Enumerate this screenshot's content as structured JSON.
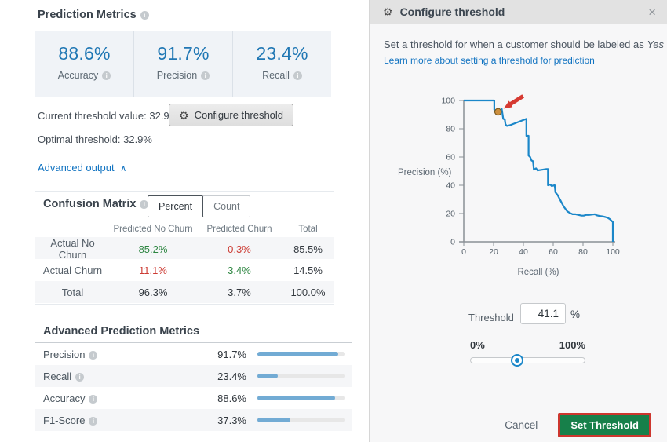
{
  "left_panel": {
    "title": "Prediction Metrics",
    "summary_metrics": [
      {
        "value": "88.6%",
        "label": "Accuracy"
      },
      {
        "value": "91.7%",
        "label": "Precision"
      },
      {
        "value": "23.4%",
        "label": "Recall"
      }
    ],
    "current_threshold_text": "Current threshold value: 32.9%",
    "configure_button_label": "Configure threshold",
    "optimal_threshold_text": "Optimal threshold: 32.9%",
    "advanced_output_label": "Advanced output",
    "confusion_matrix": {
      "title": "Confusion Matrix",
      "toggle_selected": "Percent",
      "toggle_unselected": "Count",
      "col_headers": [
        "Predicted No Churn",
        "Predicted Churn",
        "Total"
      ],
      "rows": [
        {
          "label": "Actual No Churn",
          "cells": [
            {
              "text": "85.2%",
              "color": "green"
            },
            {
              "text": "0.3%",
              "color": "red"
            },
            {
              "text": "85.5%",
              "color": "dark"
            }
          ]
        },
        {
          "label": "Actual Churn",
          "cells": [
            {
              "text": "11.1%",
              "color": "red"
            },
            {
              "text": "3.4%",
              "color": "green"
            },
            {
              "text": "14.5%",
              "color": "dark"
            }
          ]
        },
        {
          "label": "Total",
          "cells": [
            {
              "text": "96.3%",
              "color": "dark"
            },
            {
              "text": "3.7%",
              "color": "dark"
            },
            {
              "text": "100.0%",
              "color": "dark"
            }
          ]
        }
      ]
    },
    "advanced_metrics": {
      "title": "Advanced Prediction Metrics",
      "rows": [
        {
          "label": "Precision",
          "value": "91.7%",
          "pct": 91.7
        },
        {
          "label": "Recall",
          "value": "23.4%",
          "pct": 23.4
        },
        {
          "label": "Accuracy",
          "value": "88.6%",
          "pct": 88.6
        },
        {
          "label": "F1-Score",
          "value": "37.3%",
          "pct": 37.3
        }
      ]
    }
  },
  "dialog": {
    "title": "Configure threshold",
    "intro_text": "Set a threshold for when a customer should be labeled as",
    "intro_emphasis": "Yes",
    "link_text": "Learn more about setting a threshold for prediction",
    "threshold_label": "Threshold",
    "threshold_value": "41.1",
    "percent_sign": "%",
    "slider_min_label": "0%",
    "slider_max_label": "100%",
    "slider_pct": 41,
    "cancel_label": "Cancel",
    "submit_label": "Set Threshold"
  },
  "icons": {
    "gear": "⚙",
    "close": "×",
    "chevron_up": "∧"
  },
  "chart_data": {
    "type": "line",
    "title": "",
    "xlabel": "Recall (%)",
    "ylabel": "Precision (%)",
    "xlim": [
      0,
      100
    ],
    "ylim": [
      0,
      100
    ],
    "xticks": [
      0,
      20,
      40,
      60,
      80,
      100
    ],
    "yticks": [
      0,
      20,
      40,
      60,
      80,
      100
    ],
    "grid": false,
    "legend": "none",
    "line_color": "#1b87c9",
    "marker_color": "#cc8f3f",
    "annotation_color": "#d63a32",
    "series": [
      {
        "name": "precision-recall-curve",
        "points": [
          [
            0,
            100
          ],
          [
            20.5,
            100
          ],
          [
            20.5,
            93.5
          ],
          [
            21.5,
            92.5
          ],
          [
            23,
            92
          ],
          [
            25,
            92.5
          ],
          [
            25.5,
            94
          ],
          [
            26.5,
            87
          ],
          [
            27.5,
            86.5
          ],
          [
            28,
            83
          ],
          [
            29,
            82
          ],
          [
            31,
            82.5
          ],
          [
            42,
            87
          ],
          [
            42,
            75
          ],
          [
            43.5,
            75
          ],
          [
            43.5,
            61
          ],
          [
            44.5,
            60
          ],
          [
            45.5,
            57.5
          ],
          [
            46.5,
            57
          ],
          [
            47,
            51
          ],
          [
            48.5,
            52
          ],
          [
            49.5,
            50.5
          ],
          [
            55.5,
            51.5
          ],
          [
            56.5,
            51.5
          ],
          [
            56.5,
            40
          ],
          [
            58,
            40.5
          ],
          [
            59,
            39.5
          ],
          [
            61,
            40
          ],
          [
            61.5,
            35
          ],
          [
            63,
            33
          ],
          [
            65,
            29
          ],
          [
            67,
            25
          ],
          [
            69.5,
            21.5
          ],
          [
            71,
            20.5
          ],
          [
            73,
            19.5
          ],
          [
            75,
            19.5
          ],
          [
            77,
            19
          ],
          [
            79,
            18.5
          ],
          [
            80.5,
            18.5
          ],
          [
            82,
            19
          ],
          [
            84,
            19
          ],
          [
            86,
            19.3
          ],
          [
            88,
            19.5
          ],
          [
            89,
            18.8
          ],
          [
            91,
            18.3
          ],
          [
            93,
            18
          ],
          [
            95,
            17.5
          ],
          [
            96.5,
            17
          ],
          [
            98,
            16
          ],
          [
            99.5,
            14.5
          ],
          [
            100,
            14
          ],
          [
            100,
            0
          ]
        ]
      }
    ],
    "marker_point": {
      "x": 23,
      "y": 92
    },
    "annotation": "red arrow pointing at current threshold marker"
  }
}
